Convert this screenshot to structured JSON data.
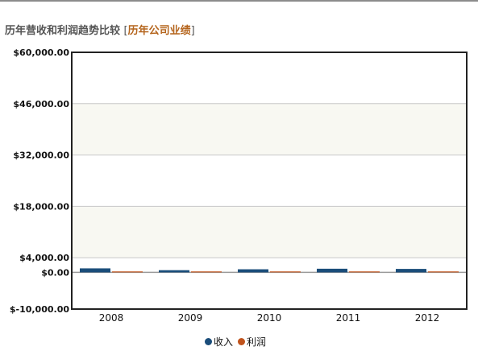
{
  "heading": {
    "title": "历年营收和利润趋势比较",
    "link_label": "历年公司业绩",
    "open_bracket": "[",
    "close_bracket": "]"
  },
  "colors": {
    "revenue": "#1a4d7a",
    "profit": "#c0531c",
    "band": "#f8f8f2",
    "grid": "#c8c8c8",
    "frame": "#222222"
  },
  "chart_data": {
    "type": "bar",
    "categories": [
      "2008",
      "2009",
      "2010",
      "2011",
      "2012"
    ],
    "series": [
      {
        "name": "收入",
        "values": [
          1100,
          600,
          850,
          1000,
          950
        ]
      },
      {
        "name": "利润",
        "values": [
          120,
          30,
          60,
          80,
          50
        ]
      }
    ],
    "y_ticks": [
      -10000,
      0,
      4000,
      18000,
      32000,
      46000,
      60000
    ],
    "y_tick_labels": [
      "$-10,000.00",
      "$0.00",
      "$4,000.00",
      "$18,000.00",
      "$32,000.00",
      "$46,000.00",
      "$60,000.00"
    ],
    "ylim": [
      -10000,
      60000
    ],
    "legend_position": "bottom-center",
    "grid": true
  }
}
